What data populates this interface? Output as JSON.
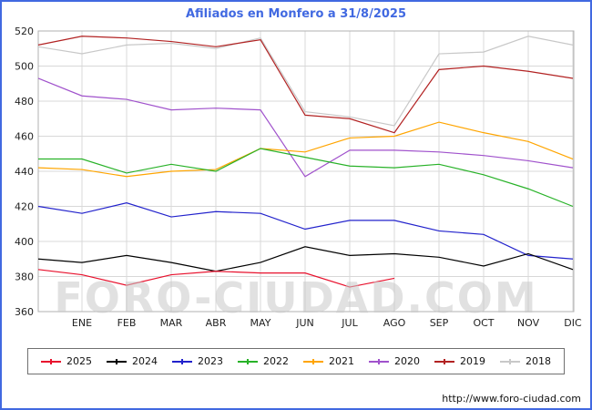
{
  "title": "Afiliados en Monfero a 31/8/2025",
  "watermark": "FORO-CIUDAD.COM",
  "source_url": "http://www.foro-ciudad.com",
  "colors": {
    "title": "#4169e1",
    "frame": "#4169e1",
    "grid": "#d8d8d8",
    "plot_border": "#b0b0b0",
    "tick_text": "#222222",
    "watermark": "#c9c9c9"
  },
  "chart_data": {
    "type": "line",
    "categories": [
      "ENE",
      "FEB",
      "MAR",
      "ABR",
      "MAY",
      "JUN",
      "JUL",
      "AGO",
      "SEP",
      "OCT",
      "NOV",
      "DIC"
    ],
    "ylim": [
      360,
      520
    ],
    "ytick_step": 20,
    "grid": true,
    "legend_position": "bottom",
    "series": [
      {
        "name": "2025",
        "color": "#e8112d",
        "start": 384,
        "values": [
          381,
          375,
          381,
          383,
          382,
          382,
          374,
          379,
          null,
          null,
          null,
          null
        ]
      },
      {
        "name": "2024",
        "color": "#000000",
        "start": 390,
        "values": [
          388,
          392,
          388,
          383,
          388,
          397,
          392,
          393,
          391,
          386,
          393,
          384
        ]
      },
      {
        "name": "2023",
        "color": "#2222cc",
        "start": 420,
        "values": [
          416,
          422,
          414,
          417,
          416,
          407,
          412,
          412,
          406,
          404,
          392,
          390
        ]
      },
      {
        "name": "2022",
        "color": "#28b228",
        "start": 447,
        "values": [
          447,
          439,
          444,
          440,
          453,
          448,
          443,
          442,
          444,
          438,
          430,
          420
        ]
      },
      {
        "name": "2021",
        "color": "#ffa500",
        "start": 442,
        "values": [
          441,
          437,
          440,
          441,
          453,
          451,
          459,
          460,
          468,
          462,
          457,
          447
        ]
      },
      {
        "name": "2020",
        "color": "#a052cc",
        "start": 493,
        "values": [
          483,
          481,
          475,
          476,
          475,
          437,
          452,
          452,
          451,
          449,
          446,
          442
        ]
      },
      {
        "name": "2019",
        "color": "#b22222",
        "start": 512,
        "values": [
          517,
          516,
          514,
          511,
          515,
          472,
          470,
          462,
          498,
          500,
          497,
          493
        ]
      },
      {
        "name": "2018",
        "color": "#c8c8c8",
        "start": 511,
        "values": [
          507,
          512,
          513,
          510,
          516,
          474,
          471,
          466,
          507,
          508,
          517,
          512
        ]
      }
    ]
  }
}
